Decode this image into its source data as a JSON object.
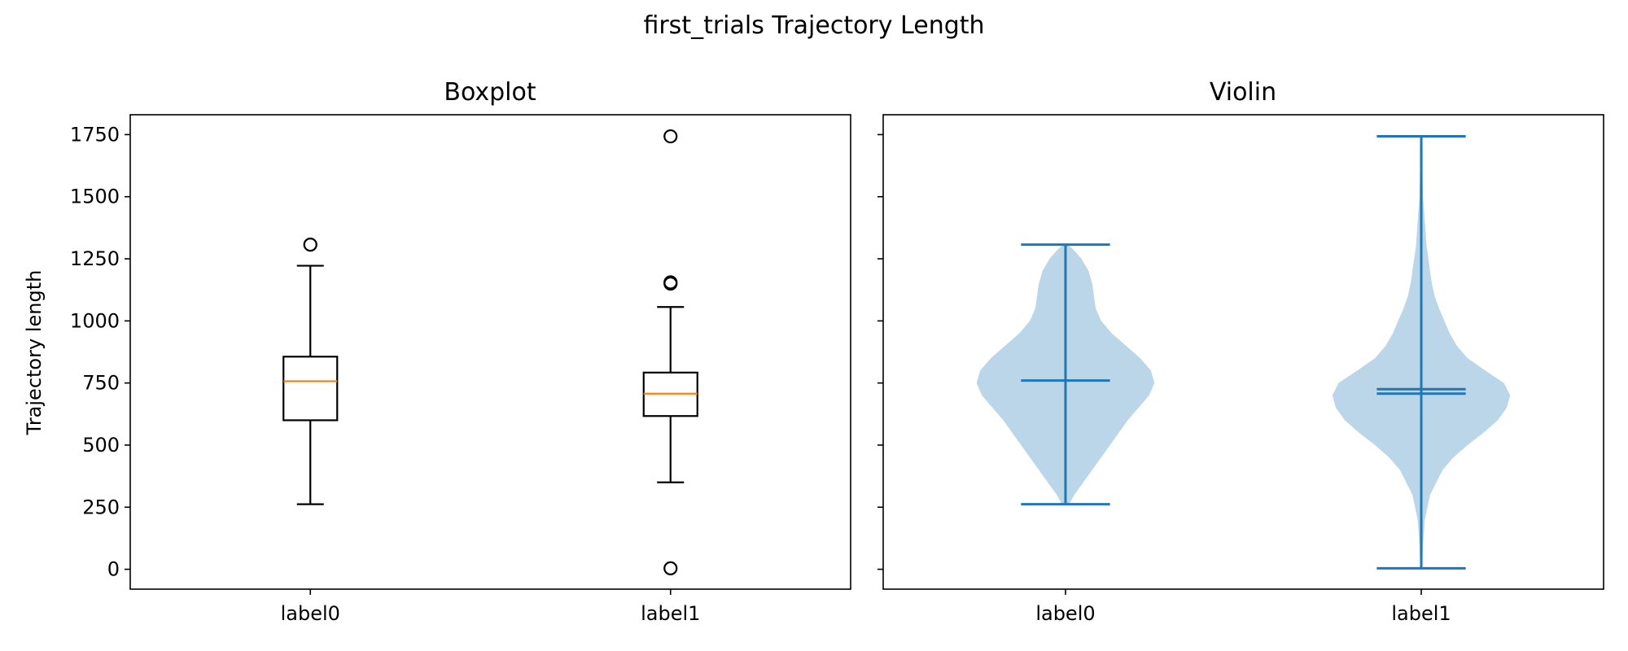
{
  "figure": {
    "title": "first_trials Trajectory Length"
  },
  "colors": {
    "box": "#000000",
    "median": "#ff7f0e",
    "violin_fill": "#1f77b4",
    "violin_lines": "#1f77b4"
  },
  "chart_data": [
    {
      "type": "box",
      "title": "Boxplot",
      "ylabel": "Trajectory length",
      "ylim": [
        -80,
        1830
      ],
      "yticks": [
        0,
        250,
        500,
        750,
        1000,
        1250,
        1500,
        1750
      ],
      "yticklabels": [
        "0",
        "250",
        "500",
        "750",
        "1000",
        "1250",
        "1500",
        "1750"
      ],
      "categories": [
        "label0",
        "label1"
      ],
      "series": [
        {
          "q1": 600,
          "median": 757,
          "q3": 856,
          "whisker_low": 262,
          "whisker_high": 1222,
          "outliers": [
            1307
          ]
        },
        {
          "q1": 617,
          "median": 707,
          "q3": 792,
          "whisker_low": 350,
          "whisker_high": 1056,
          "outliers": [
            1743,
            1155,
            1150,
            4
          ]
        }
      ]
    },
    {
      "type": "violin",
      "title": "Violin",
      "ylim": [
        -80,
        1830
      ],
      "yticks": [
        0,
        250,
        500,
        750,
        1000,
        1250,
        1500,
        1750
      ],
      "categories": [
        "label0",
        "label1"
      ],
      "series": [
        {
          "min": 262,
          "max": 1307,
          "mean": 760,
          "density": [
            [
              262,
              0.04
            ],
            [
              300,
              0.1
            ],
            [
              350,
              0.2
            ],
            [
              400,
              0.3
            ],
            [
              450,
              0.4
            ],
            [
              500,
              0.5
            ],
            [
              550,
              0.6
            ],
            [
              600,
              0.7
            ],
            [
              650,
              0.82
            ],
            [
              700,
              0.94
            ],
            [
              750,
              1.0
            ],
            [
              800,
              0.96
            ],
            [
              850,
              0.84
            ],
            [
              900,
              0.68
            ],
            [
              950,
              0.52
            ],
            [
              1000,
              0.4
            ],
            [
              1050,
              0.34
            ],
            [
              1100,
              0.32
            ],
            [
              1150,
              0.3
            ],
            [
              1200,
              0.26
            ],
            [
              1250,
              0.18
            ],
            [
              1290,
              0.08
            ],
            [
              1307,
              0.02
            ]
          ]
        },
        {
          "min": 4,
          "max": 1743,
          "mean": 725,
          "median": 707,
          "density": [
            [
              4,
              0.01
            ],
            [
              100,
              0.02
            ],
            [
              200,
              0.04
            ],
            [
              300,
              0.1
            ],
            [
              400,
              0.24
            ],
            [
              450,
              0.36
            ],
            [
              500,
              0.52
            ],
            [
              550,
              0.7
            ],
            [
              600,
              0.86
            ],
            [
              650,
              0.96
            ],
            [
              700,
              1.0
            ],
            [
              750,
              0.93
            ],
            [
              800,
              0.72
            ],
            [
              850,
              0.52
            ],
            [
              900,
              0.4
            ],
            [
              950,
              0.32
            ],
            [
              1000,
              0.26
            ],
            [
              1050,
              0.2
            ],
            [
              1100,
              0.15
            ],
            [
              1150,
              0.12
            ],
            [
              1200,
              0.1
            ],
            [
              1250,
              0.08
            ],
            [
              1300,
              0.06
            ],
            [
              1350,
              0.05
            ],
            [
              1400,
              0.04
            ],
            [
              1500,
              0.02
            ],
            [
              1600,
              0.015
            ],
            [
              1700,
              0.015
            ],
            [
              1743,
              0.01
            ]
          ]
        }
      ]
    }
  ]
}
